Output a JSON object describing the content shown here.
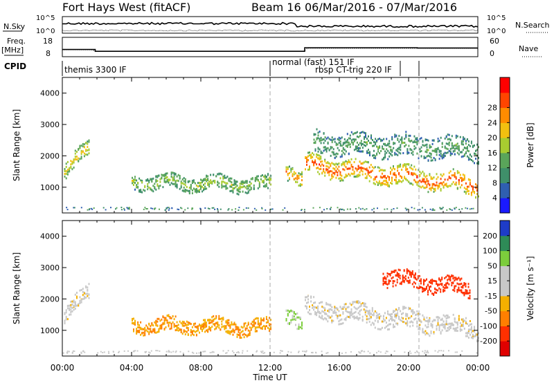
{
  "header": {
    "site": "Fort Hays West (fitACF)",
    "beam": "Beam 16",
    "dates": "06/Mar/2016 - 07/Mar/2016"
  },
  "status_panel": {
    "nsky_label": "N.Sky",
    "nsearch_label": "N.Search",
    "nsky_ticks": [
      "10^5",
      "10^0"
    ],
    "nsearch_ticks": [
      "10^5",
      "10^0"
    ],
    "freq_label_1": "Freq.",
    "freq_label_2": "[MHz]",
    "freq_ticks": [
      "18",
      "8"
    ],
    "nave_label": "Nave",
    "nave_ticks": [
      "60",
      "0"
    ],
    "cpid_label": "CPID",
    "modes": [
      {
        "name": "themis 3300 IF",
        "start_h": 0.0
      },
      {
        "name": "normal (fast) 151 IF",
        "start_h": 12.0
      },
      {
        "name": "rbsp CT-trig 220 IF",
        "start_h": 14.0
      }
    ],
    "frequency_mhz": [
      {
        "from_h": 0.0,
        "to_h": 1.9,
        "value": 11.5
      },
      {
        "from_h": 1.9,
        "to_h": 14.0,
        "value": 10.4
      },
      {
        "from_h": 14.0,
        "to_h": 20.5,
        "value": 12.6
      },
      {
        "from_h": 20.5,
        "to_h": 24.0,
        "value": 12.4
      }
    ]
  },
  "chart_data": [
    {
      "type": "heatmap",
      "quantity": "Power",
      "ylabel": "Slant Range [km]",
      "xlabel": "Time UT",
      "x_unit": "hours UT from 00:00 06/Mar/2016",
      "xlim": [
        0,
        24
      ],
      "ylim": [
        180,
        4500
      ],
      "yticks": [
        "1000",
        "2000",
        "3000",
        "4000"
      ],
      "xticks": [
        "00:00",
        "04:00",
        "08:00",
        "12:00",
        "16:00",
        "20:00",
        "00:00"
      ],
      "colorbar_label": "Power [dB]",
      "colorbar_ticks": [
        "4",
        "8",
        "12",
        "16",
        "20",
        "24",
        "28"
      ],
      "colorbar_colors": [
        "#1a1aff",
        "#2f5fb0",
        "#3f8f6a",
        "#5aa55a",
        "#a8cc30",
        "#f2c010",
        "#ff8c00",
        "#ff4500",
        "#ff0000"
      ],
      "vertical_markers_h": [
        12.0,
        20.6
      ],
      "scatter_regions": [
        {
          "t_from": 0.1,
          "t_to": 1.5,
          "center_km_from": 1400,
          "center_km_to": 2300,
          "width_km": 500,
          "level_db": 20
        },
        {
          "t_from": 4.0,
          "t_to": 12.0,
          "center_km_from": 1150,
          "center_km_to": 1080,
          "width_km": 450,
          "level_db": 16
        },
        {
          "t_from": 12.9,
          "t_to": 13.8,
          "center_km_from": 1600,
          "center_km_to": 1200,
          "width_km": 500,
          "level_db": 24
        },
        {
          "t_from": 14.0,
          "t_to": 24.0,
          "center_km_from": 1700,
          "center_km_to": 1050,
          "width_km": 600,
          "level_db": 28
        },
        {
          "t_from": 14.5,
          "t_to": 24.0,
          "center_km_from": 2400,
          "center_km_to": 2200,
          "width_km": 700,
          "level_db": 12
        }
      ]
    },
    {
      "type": "heatmap",
      "quantity": "Velocity",
      "ylabel": "Slant Range [km]",
      "xlabel": "Time UT",
      "x_unit": "hours UT from 00:00 06/Mar/2016",
      "xlim": [
        0,
        24
      ],
      "ylim": [
        180,
        4500
      ],
      "yticks": [
        "1000",
        "2000",
        "3000",
        "4000"
      ],
      "xticks": [
        "00:00",
        "04:00",
        "08:00",
        "12:00",
        "16:00",
        "20:00",
        "00:00"
      ],
      "colorbar_label": "Velocity [m s⁻¹]",
      "colorbar_ticks": [
        "200",
        "100",
        "50",
        "15",
        "-15",
        "-50",
        "-100",
        "-200"
      ],
      "colorbar_colors": [
        "#1e3cc8",
        "#2e8b57",
        "#7ccd3c",
        "#c8c8c8",
        "#c8c8c8",
        "#f4b000",
        "#ff7f00",
        "#ff3000",
        "#e00000"
      ],
      "vertical_markers_h": [
        12.0,
        20.6
      ],
      "scatter_regions": [
        {
          "t_from": 0.1,
          "t_to": 1.5,
          "center_km_from": 1400,
          "center_km_to": 2300,
          "width_km": 500,
          "velocity": 0
        },
        {
          "t_from": 4.0,
          "t_to": 12.0,
          "center_km_from": 1150,
          "center_km_to": 1080,
          "width_km": 450,
          "velocity": -50
        },
        {
          "t_from": 12.9,
          "t_to": 13.8,
          "center_km_from": 1600,
          "center_km_to": 1200,
          "width_km": 500,
          "velocity": 60
        },
        {
          "t_from": 14.0,
          "t_to": 24.0,
          "center_km_from": 1700,
          "center_km_to": 1050,
          "width_km": 600,
          "velocity": 0
        },
        {
          "t_from": 18.5,
          "t_to": 23.5,
          "center_km_from": 2700,
          "center_km_to": 2300,
          "width_km": 500,
          "velocity": -180
        }
      ]
    }
  ]
}
